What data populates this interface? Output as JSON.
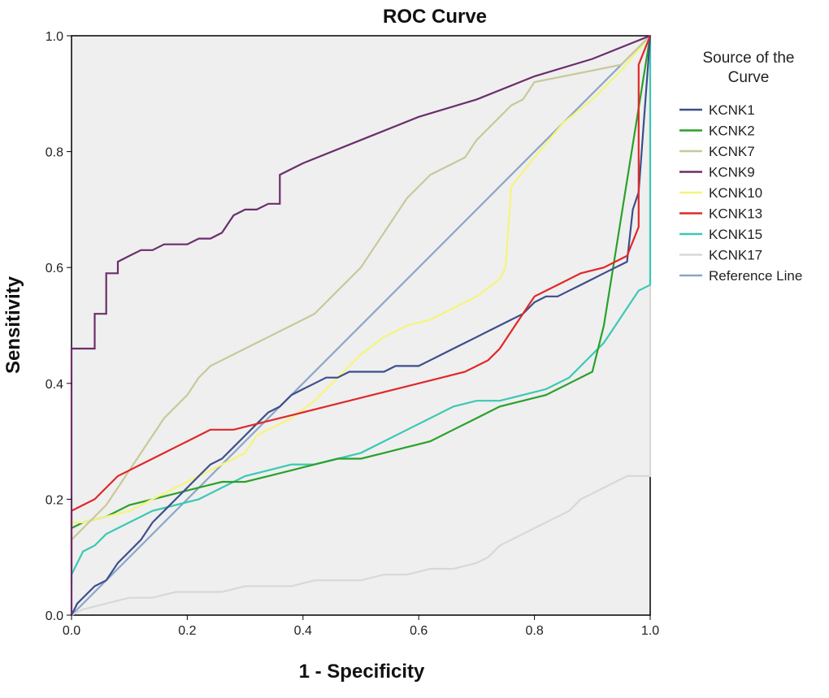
{
  "chart_data": {
    "type": "line",
    "title": "ROC Curve",
    "xlabel": "1 - Specificity",
    "ylabel": "Sensitivity",
    "xlim": [
      0,
      1
    ],
    "ylim": [
      0,
      1
    ],
    "xticks": [
      "0.0",
      "0.2",
      "0.4",
      "0.6",
      "0.8",
      "1.0"
    ],
    "yticks": [
      "0.0",
      "0.2",
      "0.4",
      "0.6",
      "0.8",
      "1.0"
    ],
    "grid": false,
    "legend": {
      "title_lines": [
        "Source of the",
        "Curve"
      ],
      "placement": "right"
    },
    "series": [
      {
        "name": "KCNK1",
        "color": "#3d4e8c",
        "x": [
          0,
          0.01,
          0.02,
          0.04,
          0.06,
          0.08,
          0.1,
          0.12,
          0.14,
          0.16,
          0.18,
          0.2,
          0.22,
          0.24,
          0.26,
          0.28,
          0.3,
          0.32,
          0.34,
          0.36,
          0.38,
          0.4,
          0.42,
          0.44,
          0.46,
          0.48,
          0.5,
          0.52,
          0.54,
          0.56,
          0.58,
          0.6,
          0.62,
          0.64,
          0.66,
          0.68,
          0.7,
          0.72,
          0.74,
          0.76,
          0.78,
          0.8,
          0.82,
          0.84,
          0.86,
          0.88,
          0.9,
          0.92,
          0.94,
          0.96,
          0.97,
          0.98,
          1.0
        ],
        "y": [
          0.0,
          0.02,
          0.03,
          0.05,
          0.06,
          0.09,
          0.11,
          0.13,
          0.16,
          0.18,
          0.2,
          0.22,
          0.24,
          0.26,
          0.27,
          0.29,
          0.31,
          0.33,
          0.35,
          0.36,
          0.38,
          0.39,
          0.4,
          0.41,
          0.41,
          0.42,
          0.42,
          0.42,
          0.42,
          0.43,
          0.43,
          0.43,
          0.44,
          0.45,
          0.46,
          0.47,
          0.48,
          0.49,
          0.5,
          0.51,
          0.52,
          0.54,
          0.55,
          0.55,
          0.56,
          0.57,
          0.58,
          0.59,
          0.6,
          0.61,
          0.7,
          0.73,
          1.0
        ]
      },
      {
        "name": "KCNK2",
        "color": "#2aa02a",
        "x": [
          0,
          0.02,
          0.06,
          0.1,
          0.14,
          0.18,
          0.22,
          0.26,
          0.3,
          0.34,
          0.38,
          0.42,
          0.46,
          0.5,
          0.54,
          0.58,
          0.62,
          0.66,
          0.7,
          0.74,
          0.78,
          0.82,
          0.86,
          0.9,
          0.92,
          1.0
        ],
        "y": [
          0.15,
          0.16,
          0.17,
          0.19,
          0.2,
          0.21,
          0.22,
          0.23,
          0.23,
          0.24,
          0.25,
          0.26,
          0.27,
          0.27,
          0.28,
          0.29,
          0.3,
          0.32,
          0.34,
          0.36,
          0.37,
          0.38,
          0.4,
          0.42,
          0.5,
          1.0
        ]
      },
      {
        "name": "KCNK7",
        "color": "#c8c89a",
        "x": [
          0,
          0.01,
          0.02,
          0.04,
          0.06,
          0.08,
          0.1,
          0.12,
          0.14,
          0.16,
          0.18,
          0.2,
          0.22,
          0.24,
          0.26,
          0.28,
          0.3,
          0.32,
          0.34,
          0.36,
          0.38,
          0.4,
          0.42,
          0.44,
          0.46,
          0.48,
          0.5,
          0.52,
          0.54,
          0.56,
          0.58,
          0.6,
          0.62,
          0.64,
          0.66,
          0.68,
          0.7,
          0.72,
          0.74,
          0.76,
          0.78,
          0.8,
          0.85,
          0.9,
          0.95,
          1.0
        ],
        "y": [
          0.13,
          0.14,
          0.15,
          0.17,
          0.19,
          0.22,
          0.25,
          0.28,
          0.31,
          0.34,
          0.36,
          0.38,
          0.41,
          0.43,
          0.44,
          0.45,
          0.46,
          0.47,
          0.48,
          0.49,
          0.5,
          0.51,
          0.52,
          0.54,
          0.56,
          0.58,
          0.6,
          0.63,
          0.66,
          0.69,
          0.72,
          0.74,
          0.76,
          0.77,
          0.78,
          0.79,
          0.82,
          0.84,
          0.86,
          0.88,
          0.89,
          0.92,
          0.93,
          0.94,
          0.95,
          1.0
        ]
      },
      {
        "name": "KCNK9",
        "color": "#6b2e6b",
        "x": [
          0,
          0.0,
          0.04,
          0.04,
          0.06,
          0.06,
          0.08,
          0.08,
          0.1,
          0.12,
          0.14,
          0.16,
          0.18,
          0.2,
          0.22,
          0.24,
          0.26,
          0.28,
          0.3,
          0.32,
          0.34,
          0.36,
          0.36,
          0.4,
          0.5,
          0.6,
          0.7,
          0.8,
          0.9,
          1.0
        ],
        "y": [
          0.0,
          0.46,
          0.46,
          0.52,
          0.52,
          0.59,
          0.59,
          0.61,
          0.62,
          0.63,
          0.63,
          0.64,
          0.64,
          0.64,
          0.65,
          0.65,
          0.66,
          0.69,
          0.7,
          0.7,
          0.71,
          0.71,
          0.76,
          0.78,
          0.82,
          0.86,
          0.89,
          0.93,
          0.96,
          1.0
        ]
      },
      {
        "name": "KCNK10",
        "color": "#f5f57a",
        "x": [
          0,
          0.02,
          0.06,
          0.1,
          0.14,
          0.18,
          0.22,
          0.26,
          0.3,
          0.32,
          0.34,
          0.38,
          0.42,
          0.46,
          0.5,
          0.54,
          0.58,
          0.62,
          0.66,
          0.7,
          0.74,
          0.75,
          0.76,
          0.8,
          0.85,
          0.9,
          0.95,
          1.0
        ],
        "y": [
          0.16,
          0.16,
          0.17,
          0.18,
          0.2,
          0.22,
          0.24,
          0.26,
          0.28,
          0.31,
          0.32,
          0.34,
          0.37,
          0.41,
          0.45,
          0.48,
          0.5,
          0.51,
          0.53,
          0.55,
          0.58,
          0.6,
          0.74,
          0.79,
          0.85,
          0.89,
          0.94,
          1.0
        ]
      },
      {
        "name": "KCNK13",
        "color": "#e02828",
        "x": [
          0,
          0.0,
          0.02,
          0.04,
          0.06,
          0.08,
          0.1,
          0.12,
          0.14,
          0.16,
          0.18,
          0.2,
          0.22,
          0.24,
          0.28,
          0.32,
          0.36,
          0.4,
          0.44,
          0.48,
          0.52,
          0.56,
          0.6,
          0.64,
          0.68,
          0.72,
          0.74,
          0.76,
          0.78,
          0.8,
          0.84,
          0.88,
          0.92,
          0.96,
          0.98,
          0.98,
          1.0
        ],
        "y": [
          0.08,
          0.18,
          0.19,
          0.2,
          0.22,
          0.24,
          0.25,
          0.26,
          0.27,
          0.28,
          0.29,
          0.3,
          0.31,
          0.32,
          0.32,
          0.33,
          0.34,
          0.35,
          0.36,
          0.37,
          0.38,
          0.39,
          0.4,
          0.41,
          0.42,
          0.44,
          0.46,
          0.49,
          0.52,
          0.55,
          0.57,
          0.59,
          0.6,
          0.62,
          0.67,
          0.95,
          1.0
        ]
      },
      {
        "name": "KCNK15",
        "color": "#3cc8b4",
        "x": [
          0,
          0.0,
          0.02,
          0.04,
          0.06,
          0.08,
          0.1,
          0.14,
          0.18,
          0.22,
          0.26,
          0.3,
          0.34,
          0.38,
          0.42,
          0.46,
          0.5,
          0.54,
          0.58,
          0.62,
          0.66,
          0.7,
          0.74,
          0.78,
          0.82,
          0.86,
          0.88,
          0.9,
          0.92,
          0.94,
          0.96,
          0.98,
          1.0,
          1.0
        ],
        "y": [
          0.05,
          0.07,
          0.11,
          0.12,
          0.14,
          0.15,
          0.16,
          0.18,
          0.19,
          0.2,
          0.22,
          0.24,
          0.25,
          0.26,
          0.26,
          0.27,
          0.28,
          0.3,
          0.32,
          0.34,
          0.36,
          0.37,
          0.37,
          0.38,
          0.39,
          0.41,
          0.43,
          0.45,
          0.47,
          0.5,
          0.53,
          0.56,
          0.57,
          1.0
        ]
      },
      {
        "name": "KCNK17",
        "color": "#d8d8d8",
        "x": [
          0,
          0.02,
          0.06,
          0.1,
          0.14,
          0.18,
          0.22,
          0.26,
          0.3,
          0.34,
          0.38,
          0.42,
          0.46,
          0.5,
          0.54,
          0.58,
          0.62,
          0.66,
          0.7,
          0.72,
          0.74,
          0.76,
          0.78,
          0.8,
          0.82,
          0.84,
          0.86,
          0.88,
          0.9,
          0.92,
          0.94,
          0.96,
          0.98,
          1.0,
          1.0
        ],
        "y": [
          0.0,
          0.01,
          0.02,
          0.03,
          0.03,
          0.04,
          0.04,
          0.04,
          0.05,
          0.05,
          0.05,
          0.06,
          0.06,
          0.06,
          0.07,
          0.07,
          0.08,
          0.08,
          0.09,
          0.1,
          0.12,
          0.13,
          0.14,
          0.15,
          0.16,
          0.17,
          0.18,
          0.2,
          0.21,
          0.22,
          0.23,
          0.24,
          0.24,
          0.24,
          1.0
        ]
      },
      {
        "name": "Reference Line",
        "color": "#8aa6c8",
        "x": [
          0,
          1
        ],
        "y": [
          0,
          1
        ]
      }
    ]
  }
}
